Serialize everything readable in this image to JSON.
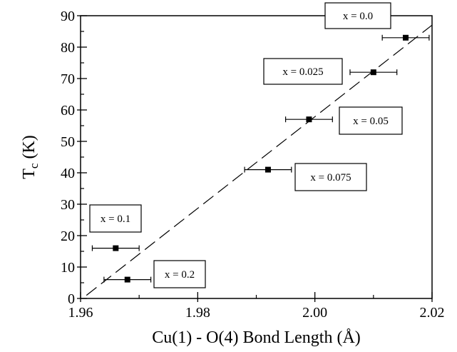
{
  "chart_data": {
    "type": "scatter",
    "title": "",
    "xlabel": "Cu(1) - O(4) Bond Length (Å)",
    "ylabel_main": "T",
    "ylabel_sub": "c",
    "ylabel_unit": " (K)",
    "xlim": [
      1.96,
      2.02
    ],
    "ylim": [
      0,
      90
    ],
    "xticks": [
      1.96,
      1.98,
      2.0,
      2.02
    ],
    "xtick_labels": [
      "1.96",
      "1.98",
      "2.00",
      "2.02"
    ],
    "xminor": [
      1.97,
      1.99,
      2.01
    ],
    "yticks": [
      0,
      10,
      20,
      30,
      40,
      50,
      60,
      70,
      80,
      90
    ],
    "ytick_labels": [
      "0",
      "10",
      "20",
      "30",
      "40",
      "50",
      "60",
      "70",
      "80",
      "90"
    ],
    "yminor": [
      5,
      15,
      25,
      35,
      45,
      55,
      65,
      75,
      85
    ],
    "grid": false,
    "points": [
      {
        "label": "x = 0.0",
        "x": 2.0155,
        "y": 83,
        "xerr_low": 2.0115,
        "xerr_high": 2.0195
      },
      {
        "label": "x = 0.025",
        "x": 2.01,
        "y": 72,
        "xerr_low": 2.006,
        "xerr_high": 2.014
      },
      {
        "label": "x = 0.05",
        "x": 1.999,
        "y": 57,
        "xerr_low": 1.995,
        "xerr_high": 2.003
      },
      {
        "label": "x = 0.075",
        "x": 1.992,
        "y": 41,
        "xerr_low": 1.988,
        "xerr_high": 1.996
      },
      {
        "label": "x = 0.1",
        "x": 1.966,
        "y": 16,
        "xerr_low": 1.962,
        "xerr_high": 1.97
      },
      {
        "label": "x = 0.2",
        "x": 1.968,
        "y": 6,
        "xerr_low": 1.964,
        "xerr_high": 1.972
      }
    ],
    "fit_line": {
      "x1": 1.961,
      "y1": 1,
      "x2": 2.02,
      "y2": 87,
      "style": "dashed"
    },
    "colors": {
      "marker": "#000000",
      "axes": "#000000",
      "background": "#ffffff"
    }
  }
}
